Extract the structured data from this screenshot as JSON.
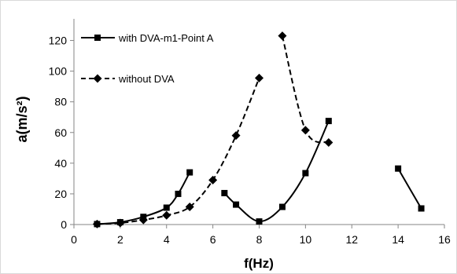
{
  "chart_data": {
    "type": "line",
    "xlabel": "f(Hz)",
    "ylabel": "a(m/s²)",
    "xlim": [
      0,
      16
    ],
    "ylim": [
      0,
      130
    ],
    "xticks": [
      0,
      2,
      4,
      6,
      8,
      10,
      12,
      14,
      16
    ],
    "yticks": [
      0,
      20,
      40,
      60,
      80,
      100,
      120
    ],
    "grid": false,
    "legend_position": "top-left",
    "series": [
      {
        "name": "with DVA-m1-Point A",
        "marker": "square",
        "line_style": "solid",
        "color": "#000000",
        "segments": [
          [
            [
              1,
              0.3
            ],
            [
              2,
              1.5
            ],
            [
              3,
              5
            ],
            [
              4,
              11
            ],
            [
              4.5,
              20
            ],
            [
              5,
              34
            ]
          ],
          [
            [
              6.5,
              20.5
            ],
            [
              7,
              13
            ],
            [
              8,
              2
            ],
            [
              9,
              11.5
            ],
            [
              10,
              33.5
            ],
            [
              11,
              67.5
            ]
          ],
          [
            [
              14,
              36.5
            ],
            [
              15,
              10.5
            ]
          ]
        ]
      },
      {
        "name": "without DVA",
        "marker": "diamond",
        "line_style": "dashed",
        "color": "#000000",
        "segments": [
          [
            [
              1,
              0.3
            ],
            [
              2,
              1
            ],
            [
              3,
              3
            ],
            [
              4,
              6
            ],
            [
              5,
              11.5
            ],
            [
              6,
              29
            ],
            [
              7,
              58
            ],
            [
              8,
              95.5
            ]
          ],
          [
            [
              9,
              123
            ],
            [
              10,
              61.5
            ],
            [
              11,
              53.5
            ]
          ]
        ]
      }
    ]
  }
}
